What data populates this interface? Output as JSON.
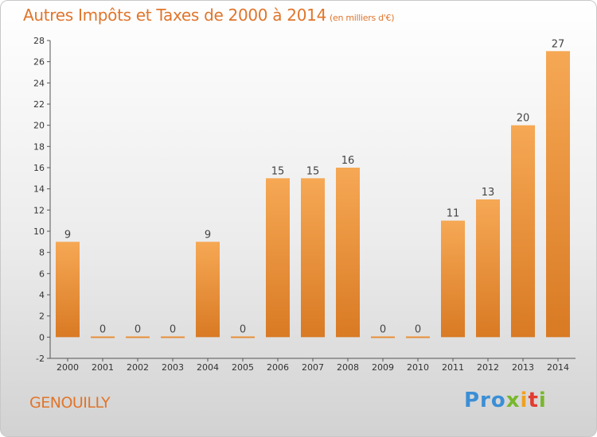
{
  "header": {
    "title": "Autres Impôts et Taxes de 2000 à 2014",
    "subtitle": "(en milliers d'€)"
  },
  "footer": {
    "commune": "GENOUILLY",
    "brand_logo": "Proxiti"
  },
  "colors": {
    "bar_light": "#f6a854",
    "bar_dark": "#d97a24",
    "accent": "#e0752b"
  },
  "chart_data": {
    "type": "bar",
    "title": "Autres Impôts et Taxes de 2000 à 2014",
    "subtitle": "(en milliers d'€)",
    "xlabel": "",
    "ylabel": "",
    "categories": [
      "2000",
      "2001",
      "2002",
      "2003",
      "2004",
      "2005",
      "2006",
      "2007",
      "2008",
      "2009",
      "2010",
      "2011",
      "2012",
      "2013",
      "2014"
    ],
    "values": [
      9,
      0,
      0,
      0,
      9,
      0,
      15,
      15,
      16,
      0,
      0,
      11,
      13,
      20,
      27
    ],
    "ylim": [
      -2,
      28
    ],
    "yticks": [
      -2,
      0,
      2,
      4,
      6,
      8,
      10,
      12,
      14,
      16,
      18,
      20,
      22,
      24,
      26,
      28
    ],
    "grid": false,
    "legend": "none"
  }
}
